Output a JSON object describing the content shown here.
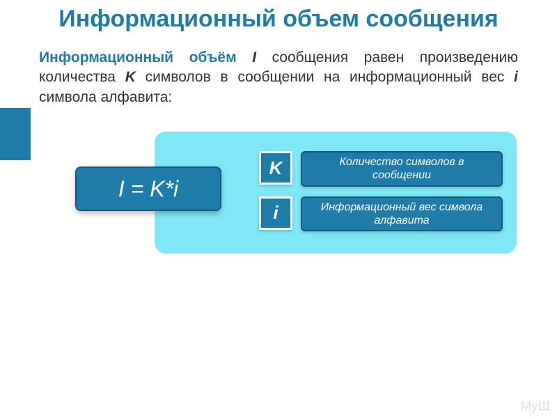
{
  "colors": {
    "brand": "#1f7ba8",
    "panel_bg": "#7fe7f5",
    "box_border": "#155a7a",
    "text": "#333333",
    "bg": "#ffffff"
  },
  "title": "Информационный объем сообщения",
  "paragraph": {
    "lead": "Информационный объём",
    "var_I": "I",
    "mid1": " сообщения равен произведению количества ",
    "var_K": "K",
    "mid2": " символов в сообщении на информационный вес ",
    "var_i": "i",
    "tail": " символа алфавита:"
  },
  "formula": "I = K*i",
  "legend": [
    {
      "symbol": "K",
      "desc": "Количество символов в сообщении"
    },
    {
      "symbol": "i",
      "desc": "Информационный вес символа алфавита"
    }
  ],
  "watermark": {
    "a": "Мy",
    "b": "Ш"
  }
}
